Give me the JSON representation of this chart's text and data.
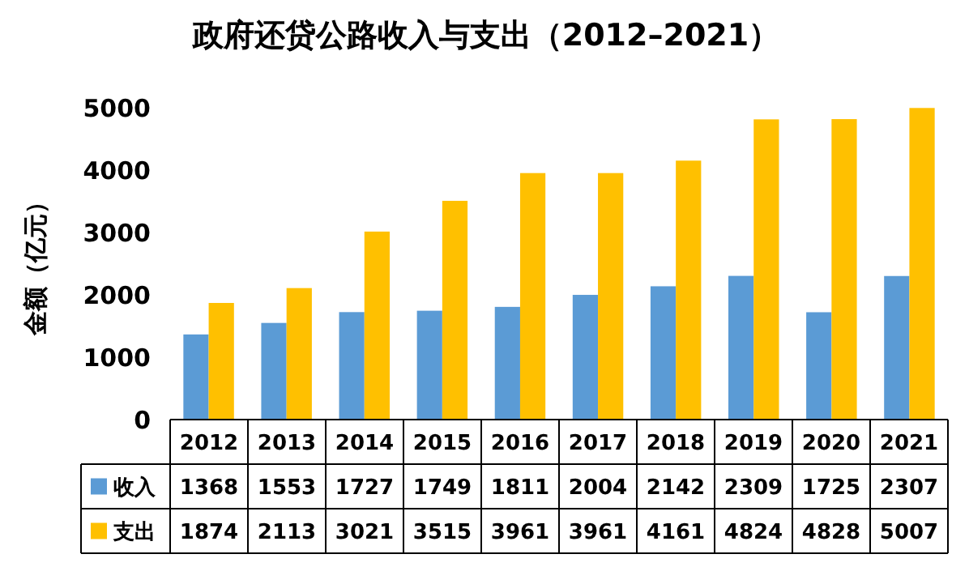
{
  "chart_data": {
    "type": "bar",
    "title": "政府还贷公路收入与支出（2012–2021）",
    "ylabel": "金额（亿元）",
    "categories": [
      "2012",
      "2013",
      "2014",
      "2015",
      "2016",
      "2017",
      "2018",
      "2019",
      "2020",
      "2021"
    ],
    "series": [
      {
        "name": "收入",
        "color": "#5b9bd5",
        "values": [
          1368,
          1553,
          1727,
          1749,
          1811,
          2004,
          2142,
          2309,
          1725,
          2307
        ]
      },
      {
        "name": "支出",
        "color": "#ffc000",
        "values": [
          1874,
          2113,
          3021,
          3515,
          3961,
          3961,
          4161,
          4824,
          4828,
          5007
        ]
      }
    ],
    "ylim": [
      0,
      5050
    ],
    "yticks": [
      0,
      1000,
      2000,
      3000,
      4000,
      5000
    ],
    "grid": false,
    "legend": "bottom",
    "data_labels": true
  }
}
